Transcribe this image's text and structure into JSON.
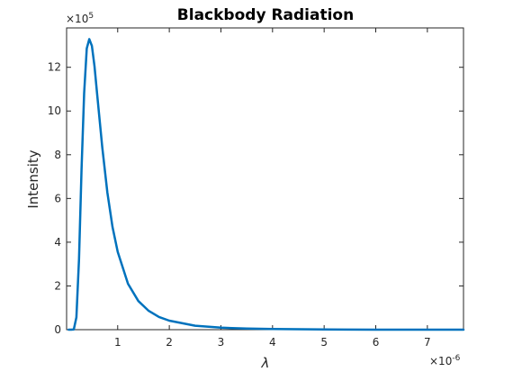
{
  "chart_data": {
    "type": "line",
    "title": "Blackbody Radiation",
    "xlabel": "λ",
    "ylabel": "Intensity",
    "x_multiplier": {
      "base": "×10",
      "exponent": "-6"
    },
    "y_multiplier": {
      "base": "×10",
      "exponent": "5"
    },
    "xlim": [
      0.01,
      7.7
    ],
    "ylim": [
      0,
      13.8
    ],
    "x_ticks": [
      1,
      2,
      3,
      4,
      5,
      6,
      7
    ],
    "x_tick_labels": [
      "1",
      "2",
      "3",
      "4",
      "5",
      "6",
      "7"
    ],
    "y_ticks": [
      0,
      2,
      4,
      6,
      8,
      10,
      12
    ],
    "y_tick_labels": [
      "0",
      "2",
      "4",
      "6",
      "8",
      "10",
      "12"
    ],
    "grid": false,
    "line_color": "#0072BD",
    "series": [
      {
        "x": [
          0.05,
          0.1,
          0.15,
          0.2,
          0.25,
          0.3,
          0.35,
          0.4,
          0.45,
          0.5,
          0.55,
          0.6,
          0.7,
          0.8,
          0.9,
          1.0,
          1.2,
          1.4,
          1.6,
          1.8,
          2.0,
          2.5,
          3.0,
          3.5,
          4.0,
          4.5,
          5.0,
          6.0,
          7.0,
          7.7
        ],
        "y": [
          0.0,
          0.0,
          0.01,
          0.57,
          3.23,
          7.33,
          10.82,
          12.86,
          13.29,
          12.98,
          12.05,
          10.83,
          8.35,
          6.27,
          4.7,
          3.56,
          2.1,
          1.31,
          0.86,
          0.58,
          0.41,
          0.18,
          0.09,
          0.05,
          0.03,
          0.02,
          0.01,
          0.0,
          0.0,
          0.0
        ]
      }
    ]
  }
}
